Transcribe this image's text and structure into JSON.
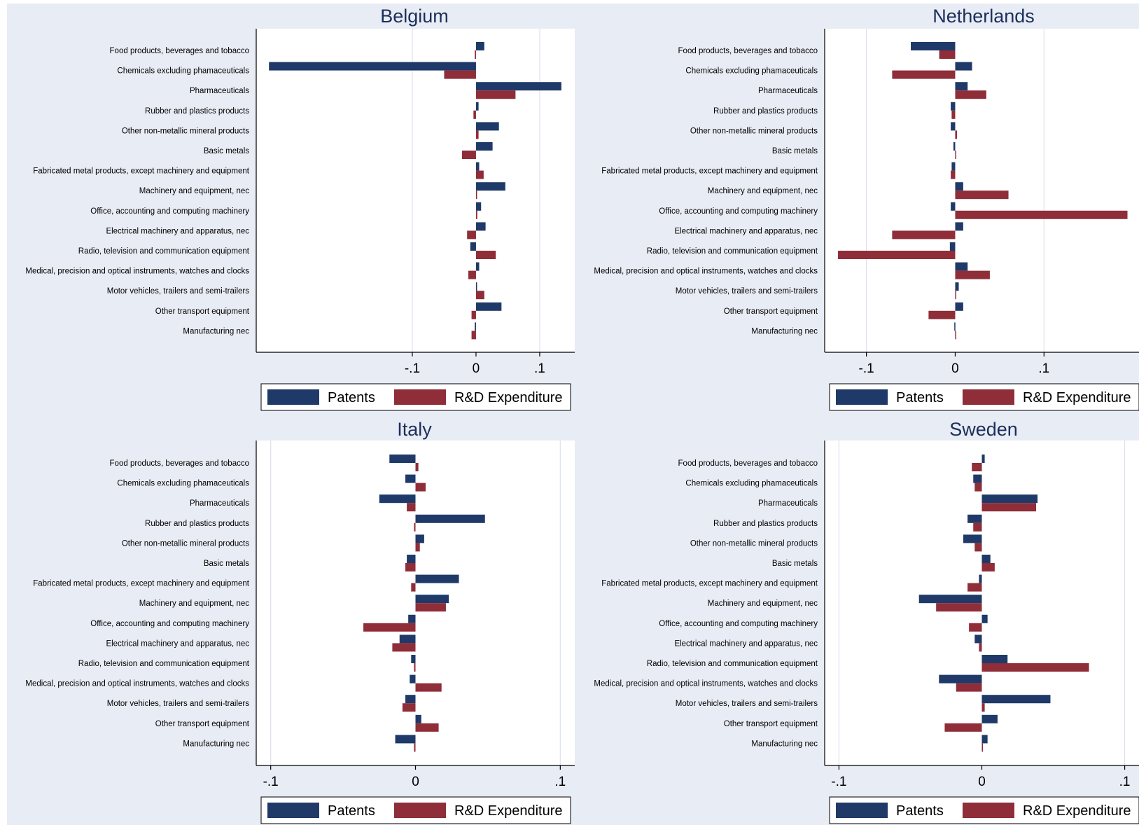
{
  "colors": {
    "outer_bg": "#e8ecf4",
    "plot_bg": "#ffffff",
    "grid": "#dde1ee",
    "patents": "#1f3a68",
    "rd": "#8f2d38",
    "title": "#1c2e5a"
  },
  "legend": {
    "patents": "Patents",
    "rd": "R&D Expenditure"
  },
  "categories": [
    "Food products, beverages and tobacco",
    "Chemicals excluding phamaceuticals",
    "Pharmaceuticals",
    "Rubber and plastics products",
    "Other non-metallic mineral products",
    "Basic metals",
    "Fabricated metal products, except machinery and equipment",
    "Machinery and equipment, nec",
    "Office, accounting and computing machinery",
    "Electrical machinery and apparatus, nec",
    "Radio, television and communication equipment",
    "Medical, precision and optical instruments, watches and clocks",
    "Motor vehicles, trailers and semi-trailers",
    "Other transport equipment",
    "Manufacturing nec"
  ],
  "chart_data": [
    {
      "type": "bar",
      "orientation": "horizontal",
      "title": "Belgium",
      "xlim": [
        -0.345,
        0.155
      ],
      "ticks": [
        {
          "v": -0.1,
          "label": "-.1"
        },
        {
          "v": 0,
          "label": "0"
        },
        {
          "v": 0.1,
          "label": ".1"
        }
      ],
      "series": [
        {
          "name": "Patents",
          "values": [
            0.013,
            -0.325,
            0.134,
            0.004,
            0.036,
            0.026,
            0.005,
            0.046,
            0.008,
            0.015,
            -0.009,
            0.005,
            0.001,
            0.04,
            -0.002
          ]
        },
        {
          "name": "R&D Expenditure",
          "values": [
            -0.002,
            -0.05,
            0.062,
            -0.004,
            0.004,
            -0.022,
            0.012,
            0.001,
            0.002,
            -0.014,
            0.031,
            -0.012,
            0.013,
            -0.007,
            -0.007
          ]
        }
      ]
    },
    {
      "type": "bar",
      "orientation": "horizontal",
      "title": "Netherlands",
      "xlim": [
        -0.147,
        0.207
      ],
      "ticks": [
        {
          "v": -0.1,
          "label": "-.1"
        },
        {
          "v": 0,
          "label": "0"
        },
        {
          "v": 0.1,
          "label": ".1"
        }
      ],
      "series": [
        {
          "name": "Patents",
          "values": [
            -0.05,
            0.019,
            0.014,
            -0.005,
            -0.005,
            -0.002,
            -0.004,
            0.009,
            -0.005,
            0.009,
            -0.006,
            0.014,
            0.004,
            0.009,
            -0.001
          ]
        },
        {
          "name": "R&D Expenditure",
          "values": [
            -0.018,
            -0.071,
            0.035,
            -0.004,
            0.002,
            0.001,
            -0.005,
            0.06,
            0.194,
            -0.071,
            -0.132,
            0.039,
            0.001,
            -0.03,
            0.0
          ]
        }
      ]
    },
    {
      "type": "bar",
      "orientation": "horizontal",
      "title": "Italy",
      "xlim": [
        -0.11,
        0.11
      ],
      "ticks": [
        {
          "v": -0.1,
          "label": "-.1"
        },
        {
          "v": 0,
          "label": "0"
        },
        {
          "v": 0.1,
          "label": ".1"
        }
      ],
      "series": [
        {
          "name": "Patents",
          "values": [
            -0.018,
            -0.007,
            -0.025,
            0.048,
            0.006,
            -0.006,
            0.03,
            0.023,
            -0.005,
            -0.011,
            -0.003,
            -0.004,
            -0.007,
            0.004,
            -0.014
          ]
        },
        {
          "name": "R&D Expenditure",
          "values": [
            0.002,
            0.007,
            -0.006,
            -0.001,
            0.003,
            -0.007,
            -0.003,
            0.021,
            -0.036,
            -0.016,
            -0.001,
            0.018,
            -0.009,
            0.016,
            -0.001
          ]
        }
      ]
    },
    {
      "type": "bar",
      "orientation": "horizontal",
      "title": "Sweden",
      "xlim": [
        -0.11,
        0.11
      ],
      "ticks": [
        {
          "v": -0.1,
          "label": "-.1"
        },
        {
          "v": 0,
          "label": "0"
        },
        {
          "v": 0.1,
          "label": ".1"
        }
      ],
      "series": [
        {
          "name": "Patents",
          "values": [
            0.002,
            -0.006,
            0.039,
            -0.01,
            -0.013,
            0.006,
            -0.002,
            -0.044,
            0.004,
            -0.005,
            0.018,
            -0.03,
            0.048,
            0.011,
            0.004
          ]
        },
        {
          "name": "R&D Expenditure",
          "values": [
            -0.007,
            -0.005,
            0.038,
            -0.006,
            -0.005,
            0.009,
            -0.01,
            -0.032,
            -0.009,
            -0.002,
            0.075,
            -0.018,
            0.002,
            -0.026,
            0.0
          ]
        }
      ]
    }
  ]
}
